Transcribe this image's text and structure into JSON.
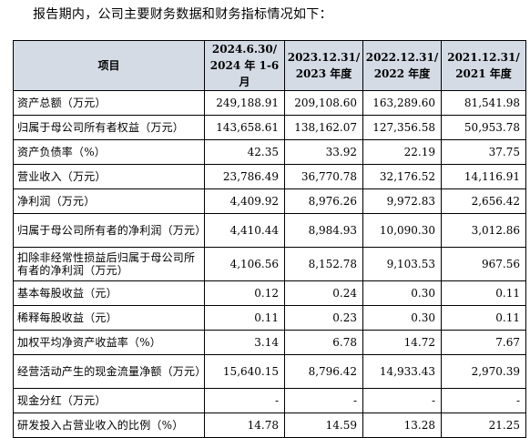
{
  "intro": "报告期内，公司主要财务数据和财务指标情况如下：",
  "table": {
    "headers": {
      "item": "项目",
      "col1_line1": "2024.6.30/",
      "col1_line2": "2024 年 1-6 月",
      "col2_line1": "2023.12.31/",
      "col2_line2": "2023 年度",
      "col3_line1": "2022.12.31/",
      "col3_line2": "2022 年度",
      "col4_line1": "2021.12.31/",
      "col4_line2": "2021 年度"
    },
    "rows": [
      {
        "label": "资产总额（万元）",
        "v": [
          "249,188.91",
          "209,108.60",
          "163,289.60",
          "81,541.98"
        ]
      },
      {
        "label": "归属于母公司所有者权益（万元）",
        "v": [
          "143,658.61",
          "138,162.07",
          "127,356.58",
          "50,953.78"
        ]
      },
      {
        "label": "资产负债率（%）",
        "v": [
          "42.35",
          "33.92",
          "22.19",
          "37.75"
        ]
      },
      {
        "label": "营业收入（万元）",
        "v": [
          "23,786.49",
          "36,770.78",
          "32,176.52",
          "14,116.91"
        ]
      },
      {
        "label": "净利润（万元）",
        "v": [
          "4,409.92",
          "8,976.26",
          "9,972.83",
          "2,656.42"
        ]
      },
      {
        "label": "归属于母公司所有者的净利润（万元）",
        "v": [
          "4,410.44",
          "8,984.93",
          "10,090.30",
          "3,012.86"
        ]
      },
      {
        "label": "扣除非经常性损益后归属于母公司所有者的净利润（万元）",
        "v": [
          "4,106.56",
          "8,152.78",
          "9,103.53",
          "967.56"
        ]
      },
      {
        "label": "基本每股收益（元）",
        "v": [
          "0.12",
          "0.24",
          "0.30",
          "0.11"
        ]
      },
      {
        "label": "稀释每股收益（元）",
        "v": [
          "0.11",
          "0.23",
          "0.30",
          "0.11"
        ]
      },
      {
        "label": "加权平均净资产收益率（%）",
        "v": [
          "3.14",
          "6.78",
          "14.72",
          "7.67"
        ]
      },
      {
        "label": "经营活动产生的现金流量净额（万元）",
        "v": [
          "15,640.15",
          "8,796.42",
          "14,933.43",
          "2,970.39"
        ]
      },
      {
        "label": "现金分红（万元）",
        "v": [
          "-",
          "-",
          "-",
          "-"
        ]
      },
      {
        "label": "研发投入占营业收入的比例（%）",
        "v": [
          "14.78",
          "14.59",
          "13.28",
          "21.25"
        ]
      }
    ]
  }
}
